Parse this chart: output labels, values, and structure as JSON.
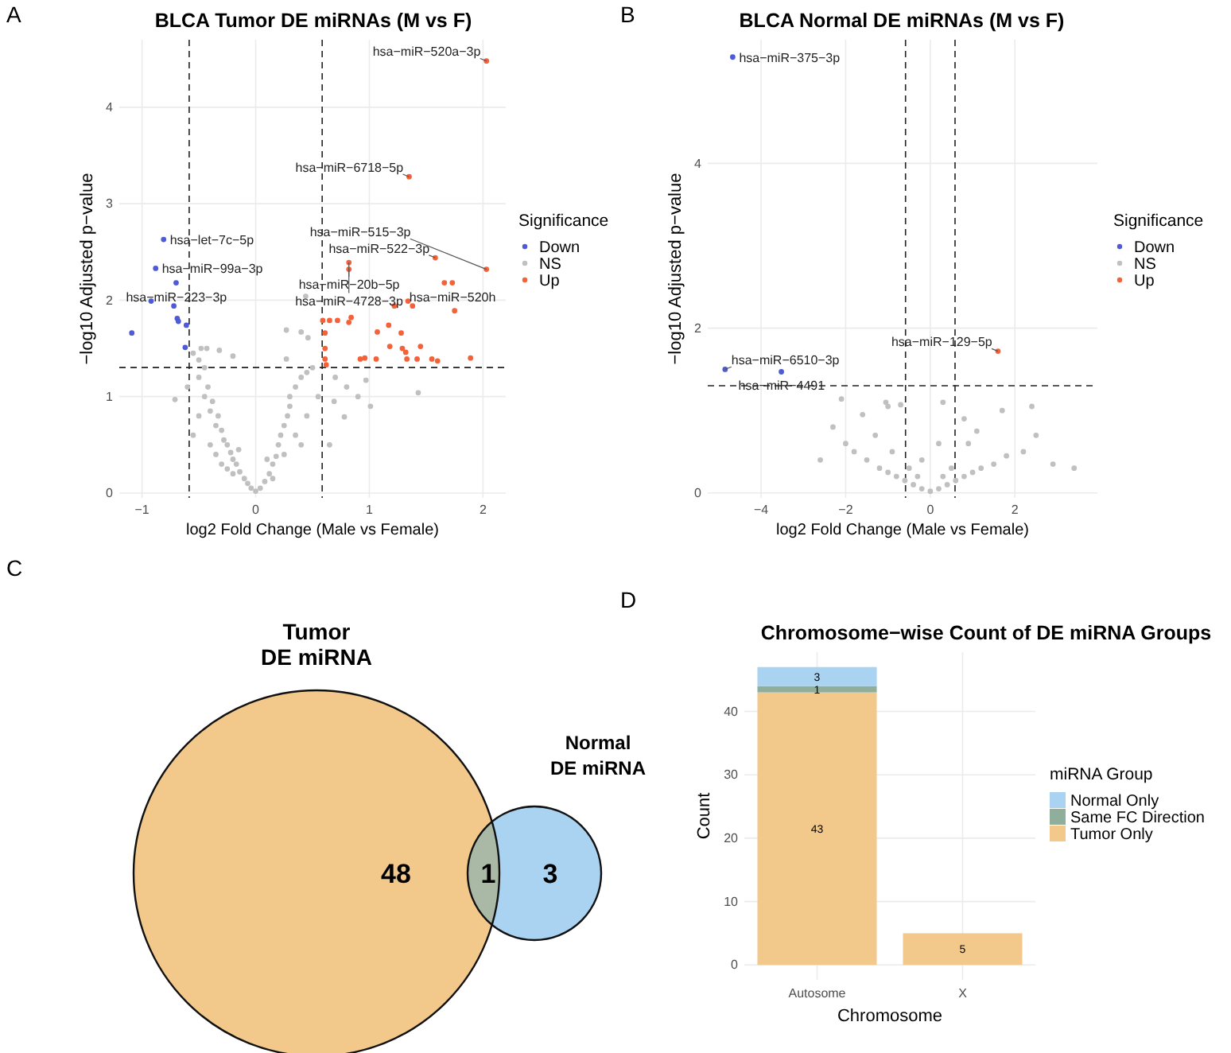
{
  "chart_data": [
    {
      "type": "scatter",
      "title": "BLCA Tumor DE miRNAs (M vs F)",
      "xlabel": "log2 Fold Change (Male vs Female)",
      "ylabel": "−log10 Adjusted p−value",
      "legend_title": "Significance",
      "legend": "right",
      "grid": true,
      "marker": "circle",
      "xlim": [
        -1.2,
        2.2
      ],
      "ylim": [
        -0.05,
        4.7
      ],
      "xticks": [
        {
          "value": -1,
          "label": "−1"
        },
        0,
        1,
        2
      ],
      "yticks": [
        0,
        1,
        2,
        3,
        4
      ],
      "ref_lines": [
        {
          "axis": "x",
          "value": -0.585,
          "line_style": "dashed"
        },
        {
          "axis": "x",
          "value": 0.585,
          "line_style": "dashed"
        },
        {
          "axis": "y",
          "value": 1.301,
          "line_style": "dashed"
        }
      ],
      "series": [
        {
          "name": "Down",
          "color": "#4f5bd5",
          "x": [
            -0.81,
            -0.88,
            -0.7,
            -0.92,
            -1.09,
            -0.72,
            -0.69,
            -0.68,
            -0.61,
            -0.62
          ],
          "values": [
            2.63,
            2.33,
            2.18,
            1.99,
            1.66,
            1.94,
            1.81,
            1.78,
            1.74,
            1.51
          ]
        },
        {
          "name": "NS",
          "color": "#c0c0c0",
          "x": [
            -0.55,
            -0.5,
            -0.45,
            -0.5,
            -0.42,
            -0.45,
            -0.38,
            -0.4,
            -0.33,
            -0.35,
            -0.3,
            -0.28,
            -0.25,
            -0.22,
            -0.2,
            -0.17,
            -0.14,
            -0.1,
            -0.07,
            -0.04,
            0,
            -0.3,
            -0.2,
            -0.4,
            -0.5,
            -0.15,
            -0.35,
            -0.25,
            0.04,
            0.08,
            0.12,
            0.15,
            0.18,
            0.2,
            0.22,
            0.25,
            0.28,
            0.3,
            0.3,
            0.35,
            0.4,
            0.45,
            0.5,
            0.35,
            0.45,
            0.55,
            0.25,
            0.15,
            0.4,
            0.1,
            0.44,
            0.27,
            0.4,
            0.46,
            0.27,
            1.43,
            -0.71,
            -0.48,
            -0.43,
            -0.32,
            -0.2,
            1.01,
            0.97,
            0.69,
            0.78,
            0.65,
            0.7,
            0.8,
            0.9,
            -0.6,
            -0.55
          ],
          "values": [
            1.45,
            1.38,
            1.3,
            1.2,
            1.1,
            1.0,
            0.95,
            0.85,
            0.8,
            0.7,
            0.65,
            0.55,
            0.5,
            0.42,
            0.35,
            0.3,
            0.22,
            0.15,
            0.1,
            0.05,
            0.02,
            0.3,
            0.2,
            0.5,
            0.8,
            0.45,
            0.4,
            0.25,
            0.05,
            0.12,
            0.2,
            0.3,
            0.38,
            0.5,
            0.6,
            0.7,
            0.8,
            0.9,
            1.0,
            1.1,
            1.2,
            1.25,
            1.3,
            0.6,
            0.8,
            1.0,
            0.4,
            0.15,
            0.5,
            0.35,
            2.04,
            1.69,
            1.67,
            1.61,
            1.39,
            1.04,
            0.97,
            1.5,
            1.5,
            1.48,
            1.42,
            0.9,
            1.17,
            0.95,
            0.79,
            0.5,
            1.2,
            1.1,
            1.0,
            1.1,
            0.6
          ]
        },
        {
          "name": "Up",
          "color": "#f4623a",
          "x": [
            0.59,
            0.65,
            0.72,
            0.84,
            0.82,
            0.61,
            0.61,
            0.61,
            0.62,
            0.92,
            0.96,
            1.06,
            1.07,
            1.17,
            1.18,
            1.22,
            1.28,
            1.29,
            1.32,
            1.33,
            1.34,
            1.38,
            1.42,
            1.45,
            1.55,
            1.6,
            1.66,
            1.73,
            1.75,
            1.89,
            1.58,
            2.03,
            1.35,
            2.03,
            0.82,
            0.82
          ],
          "values": [
            1.79,
            1.79,
            1.79,
            1.82,
            1.77,
            1.66,
            1.5,
            1.39,
            1.33,
            1.39,
            1.4,
            1.39,
            1.67,
            1.74,
            1.52,
            1.94,
            1.66,
            1.5,
            1.46,
            1.39,
            1.99,
            1.94,
            1.39,
            1.52,
            1.39,
            1.37,
            2.18,
            2.18,
            1.89,
            1.4,
            2.44,
            2.32,
            3.28,
            4.48,
            2.39,
            2.32
          ]
        }
      ],
      "annotations": [
        "A",
        {
          "text": "hsa−miR−520a−3p",
          "x": 2.03,
          "y": 4.48
        },
        {
          "text": "hsa−miR−6718−5p",
          "x": 1.35,
          "y": 3.28
        },
        {
          "text": "hsa−let−7c−5p",
          "x": -0.81,
          "y": 2.63
        },
        {
          "text": "hsa−miR−99a−3p",
          "x": -0.88,
          "y": 2.33
        },
        {
          "text": "hsa−miR−223−3p",
          "x": -0.7,
          "y": 2.18
        },
        {
          "text": "hsa−miR−522−3p",
          "x": 1.58,
          "y": 2.44
        },
        {
          "text": "hsa−miR−20b−5p",
          "x": 0.82,
          "y": 2.39
        },
        {
          "text": "hsa−miR−4728−3p",
          "x": 0.82,
          "y": 2.32
        },
        {
          "text": "hsa−miR−515−3p",
          "x": 2.03,
          "y": 2.32
        },
        {
          "text": "hsa−miR−520h",
          "x": 1.73,
          "y": 2.18
        }
      ]
    },
    {
      "type": "scatter",
      "title": "BLCA Normal DE miRNAs (M vs F)",
      "xlabel": "log2 Fold Change (Male vs Female)",
      "ylabel": "−log10 Adjusted p−value",
      "legend_title": "Significance",
      "legend": "right",
      "grid": true,
      "marker": "circle",
      "xlim": [
        -5.26,
        3.95
      ],
      "ylim": [
        -0.06,
        5.5
      ],
      "xticks": [
        {
          "value": -4,
          "label": "−4"
        },
        {
          "value": -2,
          "label": "−2"
        },
        0,
        2
      ],
      "yticks": [
        0,
        2,
        4
      ],
      "ref_lines": [
        {
          "axis": "x",
          "value": -0.585,
          "line_style": "dashed"
        },
        {
          "axis": "x",
          "value": 0.585,
          "line_style": "dashed"
        },
        {
          "axis": "y",
          "value": 1.301,
          "line_style": "dashed"
        }
      ],
      "series": [
        {
          "name": "Down",
          "color": "#4f5bd5",
          "x": [
            -4.67,
            -4.85,
            -3.52
          ],
          "values": [
            5.29,
            1.5,
            1.47
          ]
        },
        {
          "name": "NS",
          "color": "#c0c0c0",
          "x": [
            0,
            -0.2,
            0.2,
            -0.4,
            0.4,
            -0.6,
            0.6,
            -0.8,
            0.8,
            -1,
            1,
            -1.2,
            1.2,
            -0.5,
            0.5,
            -1.5,
            1.5,
            -0.3,
            0.3,
            -1.8,
            1.8,
            -2,
            2.2,
            -1.3,
            0.9,
            -2.3,
            0.8,
            2.5,
            -2.1,
            -1.05,
            -1,
            -0.7,
            1.7,
            0.3,
            2.4,
            3.4,
            -2.6,
            -0.9,
            1.1,
            -1.6,
            0.2,
            -0.2,
            2.9
          ],
          "values": [
            0.02,
            0.05,
            0.05,
            0.1,
            0.1,
            0.15,
            0.15,
            0.2,
            0.2,
            0.25,
            0.25,
            0.3,
            0.3,
            0.3,
            0.3,
            0.4,
            0.35,
            0.2,
            0.2,
            0.5,
            0.45,
            0.6,
            0.5,
            0.7,
            0.6,
            0.8,
            0.9,
            0.7,
            1.14,
            1.1,
            1.05,
            1.07,
            1.0,
            1.1,
            1.05,
            0.3,
            0.4,
            0.5,
            0.75,
            0.95,
            0.6,
            0.4,
            0.35
          ]
        },
        {
          "name": "Up",
          "color": "#f4623a",
          "x": [
            1.6
          ],
          "values": [
            1.72
          ]
        }
      ],
      "annotations": [
        "B",
        {
          "text": "hsa−miR−375−3p",
          "x": -4.67,
          "y": 5.29
        },
        {
          "text": "hsa−miR−6510−3p",
          "x": -4.85,
          "y": 1.5
        },
        {
          "text": "hsa−miR−4491",
          "x": -3.52,
          "y": 1.47
        },
        {
          "text": "hsa−miR−129−5p",
          "x": 1.6,
          "y": 1.72
        }
      ]
    },
    {
      "type": "other",
      "categories": [
        "Tumor\nDE miRNA",
        "Normal\nDE miRNA"
      ],
      "colors": [
        "#f3c98b",
        "#a9d3f0",
        "#a9b9a6"
      ],
      "annotations": [
        "C",
        "48",
        "1",
        "3"
      ]
    },
    {
      "type": "bar",
      "stacked": true,
      "title": "Chromosome−wise Count of DE miRNA Groups",
      "xlabel": "Chromosome",
      "ylabel": "Count",
      "legend_title": "miRNA Group",
      "legend": "right",
      "grid": true,
      "data_labels": true,
      "categories": [
        "Autosome",
        "X"
      ],
      "ylim": [
        -2.35,
        49.35
      ],
      "yticks": [
        0,
        10,
        20,
        30,
        40
      ],
      "series": [
        {
          "name": "Tumor Only",
          "color": "#f3c98b",
          "values": [
            43,
            5
          ]
        },
        {
          "name": "Same FC Direction",
          "color": "#8fae9b",
          "values": [
            1,
            null
          ]
        },
        {
          "name": "Normal Only",
          "color": "#a9d3f0",
          "values": [
            3,
            null
          ]
        }
      ],
      "annotations": [
        "D"
      ]
    }
  ]
}
